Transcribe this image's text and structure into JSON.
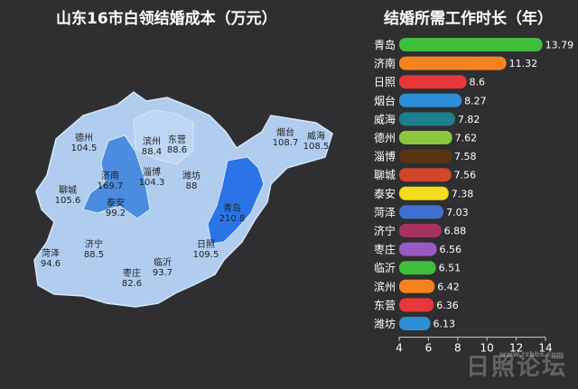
{
  "map": {
    "title": "山东16市白领结婚成本（万元）",
    "regions": [
      {
        "name": "德州",
        "value": "104.5",
        "color": "#a9c9ee"
      },
      {
        "name": "滨州",
        "value": "88.4",
        "color": "#b9d3f2"
      },
      {
        "name": "东营",
        "value": "88.6",
        "color": "#b9d3f2"
      },
      {
        "name": "烟台",
        "value": "108.7",
        "color": "#a6c7ee"
      },
      {
        "name": "威海",
        "value": "108.5",
        "color": "#a6c7ee"
      },
      {
        "name": "济南",
        "value": "169.7",
        "color": "#4b8be0"
      },
      {
        "name": "淄博",
        "value": "104.3",
        "color": "#a9c9ee"
      },
      {
        "name": "潍坊",
        "value": "88",
        "color": "#b9d3f2"
      },
      {
        "name": "聊城",
        "value": "105.6",
        "color": "#a8c8ee"
      },
      {
        "name": "泰安",
        "value": "99.2",
        "color": "#afcdef"
      },
      {
        "name": "青岛",
        "value": "210.8",
        "color": "#2a74e8"
      },
      {
        "name": "日照",
        "value": "109.5",
        "color": "#a6c7ee"
      },
      {
        "name": "济宁",
        "value": "88.5",
        "color": "#b9d3f2"
      },
      {
        "name": "菏泽",
        "value": "94.6",
        "color": "#b3cff0"
      },
      {
        "name": "枣庄",
        "value": "82.6",
        "color": "#c0d8f3"
      },
      {
        "name": "临沂",
        "value": "93.7",
        "color": "#b3cff0"
      }
    ]
  },
  "chart_data": {
    "type": "bar",
    "title": "结婚所需工作时长（年）",
    "categories": [
      "青岛",
      "济南",
      "日照",
      "烟台",
      "威海",
      "德州",
      "淄博",
      "聊城",
      "泰安",
      "菏泽",
      "济宁",
      "枣庄",
      "临沂",
      "滨州",
      "东营",
      "潍坊"
    ],
    "values": [
      13.79,
      11.32,
      8.6,
      8.27,
      7.82,
      7.62,
      7.58,
      7.56,
      7.38,
      7.03,
      6.88,
      6.56,
      6.51,
      6.42,
      6.36,
      6.13
    ],
    "value_labels": [
      "13.79",
      "11.32",
      "8.6",
      "8.27",
      "7.82",
      "7.62",
      "7.58",
      "7.56",
      "7.38",
      "7.03",
      "6.88",
      "6.56",
      "6.51",
      "6.42",
      "6.36",
      "6.13"
    ],
    "colors": [
      "#3fbe3b",
      "#f5821f",
      "#e8373b",
      "#2d8fd8",
      "#1f7e8d",
      "#8cc63f",
      "#5a3514",
      "#d2462b",
      "#f2dc1b",
      "#3f6fd1",
      "#a6335f",
      "#9b59c6",
      "#3fbe3b",
      "#f5821f",
      "#e8373b",
      "#2d8fd8"
    ],
    "xlim": [
      4,
      14
    ],
    "xticks": [
      "4",
      "6",
      "8",
      "10",
      "12",
      "14"
    ],
    "grid": false
  },
  "watermark": {
    "text": "日照论坛",
    "sub": "www.rzbbs.com"
  }
}
